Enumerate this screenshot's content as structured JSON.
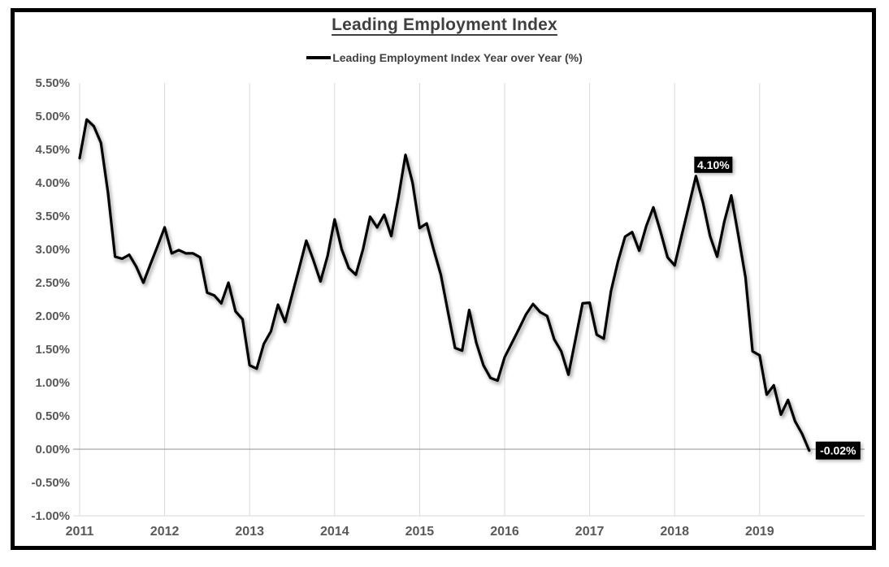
{
  "title": "Leading Employment Index",
  "legend_label": "Leading Employment Index Year over Year (%)",
  "colors": {
    "frame_border": "#000000",
    "title_text": "#3f3f3f",
    "axis_label": "#595959",
    "gridline": "#d9d9d9",
    "zero_axis_line": "#a6a6a6",
    "series_line": "#000000",
    "data_label_bg": "#000000",
    "data_label_text": "#ffffff"
  },
  "chart_data": {
    "type": "line",
    "title": "Leading Employment Index",
    "x_start": "2011-01",
    "x_end": "2019-08",
    "frequency": "monthly",
    "xlabel": "",
    "ylabel": "",
    "ylim": [
      -1.0,
      5.5
    ],
    "grid": "vertical-year-gridlines-only",
    "legend_position": "top-center",
    "x_ticks": [
      "2011",
      "2012",
      "2013",
      "2014",
      "2015",
      "2016",
      "2017",
      "2018",
      "2019"
    ],
    "y_ticks": [
      {
        "label": "5.50%",
        "value": 5.5
      },
      {
        "label": "5.00%",
        "value": 5.0
      },
      {
        "label": "4.50%",
        "value": 4.5
      },
      {
        "label": "4.00%",
        "value": 4.0
      },
      {
        "label": "3.50%",
        "value": 3.5
      },
      {
        "label": "3.00%",
        "value": 3.0
      },
      {
        "label": "2.50%",
        "value": 2.5
      },
      {
        "label": "2.00%",
        "value": 2.0
      },
      {
        "label": "1.50%",
        "value": 1.5
      },
      {
        "label": "1.00%",
        "value": 1.0
      },
      {
        "label": "0.50%",
        "value": 0.5
      },
      {
        "label": "0.00%",
        "value": 0.0
      },
      {
        "label": "-0.50%",
        "value": -0.5
      },
      {
        "label": "-1.00%",
        "value": -1.0
      }
    ],
    "series": [
      {
        "name": "Leading Employment Index Year over Year (%)",
        "color": "#000000",
        "values": [
          4.37,
          4.95,
          4.85,
          4.6,
          3.85,
          2.89,
          2.86,
          2.92,
          2.74,
          2.5,
          2.78,
          3.05,
          3.33,
          2.94,
          2.99,
          2.94,
          2.94,
          2.88,
          2.35,
          2.31,
          2.19,
          2.5,
          2.07,
          1.95,
          1.26,
          1.21,
          1.58,
          1.77,
          2.17,
          1.91,
          2.32,
          2.72,
          3.13,
          2.84,
          2.52,
          2.9,
          3.45,
          3.0,
          2.72,
          2.62,
          3.0,
          3.49,
          3.33,
          3.52,
          3.2,
          3.78,
          4.42,
          4.0,
          3.32,
          3.39,
          2.99,
          2.62,
          2.06,
          1.52,
          1.48,
          2.09,
          1.6,
          1.26,
          1.07,
          1.03,
          1.38,
          1.59,
          1.8,
          2.02,
          2.18,
          2.06,
          2.0,
          1.65,
          1.47,
          1.12,
          1.65,
          2.19,
          2.2,
          1.72,
          1.66,
          2.37,
          2.82,
          3.19,
          3.26,
          2.98,
          3.35,
          3.63,
          3.27,
          2.88,
          2.76,
          3.21,
          3.65,
          4.1,
          3.7,
          3.2,
          2.89,
          3.41,
          3.81,
          3.21,
          2.58,
          1.47,
          1.41,
          0.82,
          0.96,
          0.52,
          0.74,
          0.42,
          0.23,
          -0.02
        ]
      }
    ],
    "annotations": [
      {
        "label": "4.10%",
        "month_index": 87,
        "placement": "above-right"
      },
      {
        "label": "-0.02%",
        "month_index": 103,
        "placement": "right"
      }
    ]
  }
}
